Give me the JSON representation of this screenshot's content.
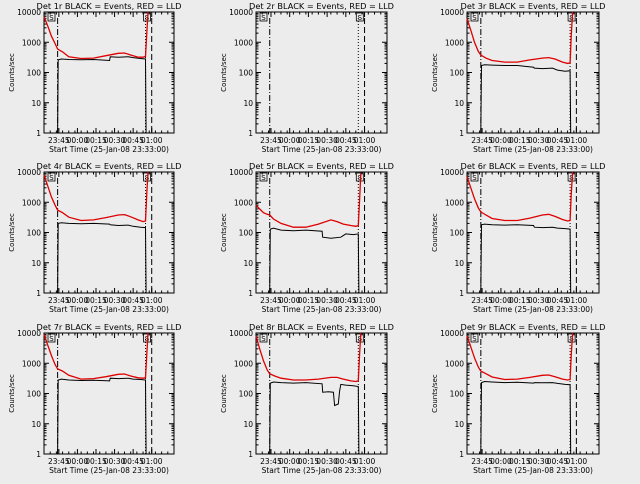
{
  "figure": {
    "xlabel": "Start Time (25-Jan-08 23:33:00)",
    "ylabel": "Counts/sec",
    "x_ticks": [
      "23:45",
      "00:00",
      "00:15",
      "00:30",
      "00:45",
      "01:00"
    ],
    "y_ticks": [
      "1",
      "10",
      "100",
      "1000",
      "10000"
    ],
    "legend_note": "BLACK = Events, RED = LLD",
    "marker_left": "S",
    "marker_right": "S"
  },
  "colors": {
    "events": "#000000",
    "lld": "#dd0000",
    "background": "#ececec"
  },
  "chart_data": [
    {
      "type": "line",
      "title": "Det 1r BLACK = Events, RED = LLD",
      "xlabel": "Start Time (25-Jan-08 23:33:00)",
      "ylabel": "Counts/sec",
      "yscale": "log",
      "xlim": [
        0,
        105
      ],
      "ylim": [
        1,
        10000
      ],
      "x_units": "minutes after 25-Jan-08 23:33:00",
      "series": [
        {
          "name": "Events",
          "color": "black",
          "x": [
            11,
            11.5,
            14,
            20,
            30,
            40,
            53,
            53.5,
            60,
            68,
            72,
            78,
            82,
            82.5
          ],
          "y": [
            0.5,
            260,
            280,
            270,
            265,
            270,
            250,
            330,
            320,
            330,
            310,
            290,
            280,
            0.5
          ]
        },
        {
          "name": "LLD",
          "color": "red",
          "x": [
            0,
            3,
            6,
            9,
            11,
            15,
            20,
            30,
            40,
            50,
            60,
            65,
            70,
            76,
            80,
            82,
            83,
            84
          ],
          "y": [
            7000,
            3500,
            1600,
            900,
            600,
            480,
            330,
            290,
            300,
            360,
            430,
            440,
            380,
            320,
            320,
            340,
            2000,
            12000
          ]
        }
      ],
      "vlines": [
        11,
        82,
        87
      ]
    },
    {
      "type": "line",
      "title": "Det 2r BLACK = Events, RED = LLD",
      "xlabel": "Start Time (25-Jan-08 23:33:00)",
      "ylabel": "Counts/sec",
      "yscale": "log",
      "xlim": [
        0,
        105
      ],
      "ylim": [
        1,
        10000
      ],
      "x_units": "minutes after 25-Jan-08 23:33:00",
      "series": [
        {
          "name": "Events",
          "color": "black",
          "x": [],
          "y": []
        },
        {
          "name": "LLD",
          "color": "red",
          "x": [],
          "y": []
        }
      ],
      "vlines": [
        11,
        82,
        87
      ]
    },
    {
      "type": "line",
      "title": "Det 3r BLACK = Events, RED = LLD",
      "xlabel": "Start Time (25-Jan-08 23:33:00)",
      "ylabel": "Counts/sec",
      "yscale": "log",
      "xlim": [
        0,
        105
      ],
      "ylim": [
        1,
        10000
      ],
      "x_units": "minutes after 25-Jan-08 23:33:00",
      "series": [
        {
          "name": "Events",
          "color": "black",
          "x": [
            11,
            11.5,
            14,
            20,
            30,
            40,
            53,
            53.5,
            60,
            68,
            72,
            78,
            82,
            82.5
          ],
          "y": [
            0.5,
            170,
            180,
            175,
            170,
            170,
            150,
            140,
            135,
            140,
            120,
            110,
            115,
            0.5
          ]
        },
        {
          "name": "LLD",
          "color": "red",
          "x": [
            0,
            3,
            6,
            9,
            11,
            15,
            20,
            30,
            40,
            50,
            60,
            65,
            70,
            76,
            80,
            82,
            83,
            84
          ],
          "y": [
            6000,
            2500,
            1000,
            500,
            380,
            300,
            250,
            220,
            220,
            260,
            300,
            310,
            280,
            220,
            200,
            210,
            1800,
            11000
          ]
        }
      ],
      "vlines": [
        11,
        82,
        87
      ]
    },
    {
      "type": "line",
      "title": "Det 4r BLACK = Events, RED = LLD",
      "xlabel": "Start Time (25-Jan-08 23:33:00)",
      "ylabel": "Counts/sec",
      "yscale": "log",
      "xlim": [
        0,
        105
      ],
      "ylim": [
        1,
        10000
      ],
      "x_units": "minutes after 25-Jan-08 23:33:00",
      "series": [
        {
          "name": "Events",
          "color": "black",
          "x": [
            11,
            11.5,
            14,
            20,
            30,
            40,
            53,
            53.5,
            60,
            68,
            72,
            78,
            82,
            82.5
          ],
          "y": [
            0.5,
            200,
            210,
            200,
            195,
            200,
            190,
            180,
            170,
            175,
            160,
            150,
            145,
            0.5
          ]
        },
        {
          "name": "LLD",
          "color": "red",
          "x": [
            0,
            3,
            6,
            9,
            11,
            15,
            20,
            30,
            40,
            50,
            60,
            65,
            70,
            76,
            80,
            82,
            83,
            84
          ],
          "y": [
            8000,
            3500,
            1500,
            800,
            550,
            450,
            320,
            250,
            260,
            310,
            380,
            390,
            330,
            260,
            230,
            240,
            2000,
            11000
          ]
        }
      ],
      "vlines": [
        11,
        82,
        87
      ]
    },
    {
      "type": "line",
      "title": "Det 5r BLACK = Events, RED = LLD",
      "xlabel": "Start Time (25-Jan-08 23:33:00)",
      "ylabel": "Counts/sec",
      "yscale": "log",
      "xlim": [
        0,
        105
      ],
      "ylim": [
        1,
        10000
      ],
      "x_units": "minutes after 25-Jan-08 23:33:00",
      "series": [
        {
          "name": "Events",
          "color": "black",
          "x": [
            11,
            11.5,
            14,
            20,
            30,
            40,
            53,
            53.5,
            60,
            68,
            72,
            78,
            82,
            82.5
          ],
          "y": [
            0.5,
            130,
            140,
            120,
            115,
            120,
            110,
            70,
            65,
            70,
            90,
            85,
            90,
            0.5
          ]
        },
        {
          "name": "LLD",
          "color": "red",
          "x": [
            0,
            3,
            6,
            9,
            11,
            14,
            20,
            30,
            40,
            50,
            60,
            65,
            70,
            76,
            80,
            82,
            83,
            84
          ],
          "y": [
            800,
            600,
            450,
            400,
            380,
            280,
            200,
            150,
            150,
            190,
            260,
            230,
            190,
            170,
            160,
            170,
            1200,
            9000
          ]
        }
      ],
      "vlines": [
        11,
        82,
        87
      ]
    },
    {
      "type": "line",
      "title": "Det 6r BLACK = Events, RED = LLD",
      "xlabel": "Start Time (25-Jan-08 23:33:00)",
      "ylabel": "Counts/sec",
      "yscale": "log",
      "xlim": [
        0,
        105
      ],
      "ylim": [
        1,
        10000
      ],
      "x_units": "minutes after 25-Jan-08 23:33:00",
      "series": [
        {
          "name": "Events",
          "color": "black",
          "x": [
            11,
            11.5,
            14,
            20,
            30,
            40,
            53,
            53.5,
            60,
            68,
            72,
            78,
            82,
            82.5
          ],
          "y": [
            0.5,
            180,
            190,
            180,
            175,
            180,
            170,
            150,
            145,
            150,
            140,
            135,
            130,
            0.5
          ]
        },
        {
          "name": "LLD",
          "color": "red",
          "x": [
            0,
            3,
            6,
            9,
            11,
            15,
            20,
            30,
            40,
            50,
            60,
            65,
            70,
            76,
            80,
            82,
            83,
            84
          ],
          "y": [
            7000,
            3000,
            1300,
            650,
            480,
            380,
            290,
            250,
            250,
            300,
            380,
            400,
            340,
            270,
            240,
            250,
            2000,
            11000
          ]
        }
      ],
      "vlines": [
        11,
        82,
        87
      ]
    },
    {
      "type": "line",
      "title": "Det 7r BLACK = Events, RED = LLD",
      "xlabel": "Start Time (25-Jan-08 23:33:00)",
      "ylabel": "Counts/sec",
      "yscale": "log",
      "xlim": [
        0,
        105
      ],
      "ylim": [
        1,
        10000
      ],
      "x_units": "minutes after 25-Jan-08 23:33:00",
      "series": [
        {
          "name": "Events",
          "color": "black",
          "x": [
            11,
            11.5,
            14,
            20,
            30,
            40,
            53,
            53.5,
            60,
            68,
            72,
            78,
            82,
            82.5
          ],
          "y": [
            0.5,
            280,
            300,
            280,
            270,
            275,
            260,
            320,
            310,
            320,
            300,
            290,
            280,
            0.5
          ]
        },
        {
          "name": "LLD",
          "color": "red",
          "x": [
            0,
            3,
            6,
            9,
            11,
            15,
            20,
            30,
            40,
            50,
            60,
            65,
            70,
            76,
            80,
            82,
            83,
            84
          ],
          "y": [
            9000,
            4000,
            1800,
            900,
            650,
            550,
            400,
            300,
            310,
            360,
            430,
            440,
            380,
            330,
            320,
            330,
            2000,
            12000
          ]
        }
      ],
      "vlines": [
        11,
        82,
        87
      ]
    },
    {
      "type": "line",
      "title": "Det 8r BLACK = Events, RED = LLD",
      "xlabel": "Start Time (25-Jan-08 23:33:00)",
      "ylabel": "Counts/sec",
      "yscale": "log",
      "xlim": [
        0,
        105
      ],
      "ylim": [
        1,
        10000
      ],
      "x_units": "minutes after 25-Jan-08 23:33:00",
      "series": [
        {
          "name": "Events",
          "color": "black",
          "x": [
            11,
            11.5,
            14,
            20,
            30,
            40,
            53,
            53.5,
            58,
            62,
            63,
            66,
            67,
            68,
            72,
            78,
            82,
            82.5
          ],
          "y": [
            0.5,
            220,
            240,
            230,
            220,
            230,
            210,
            110,
            115,
            110,
            40,
            45,
            120,
            200,
            190,
            180,
            170,
            0.5
          ]
        },
        {
          "name": "LLD",
          "color": "red",
          "x": [
            0,
            3,
            6,
            9,
            11,
            15,
            20,
            30,
            40,
            50,
            60,
            65,
            70,
            76,
            80,
            82,
            83,
            84
          ],
          "y": [
            8000,
            3000,
            1200,
            600,
            450,
            380,
            320,
            280,
            280,
            300,
            340,
            340,
            300,
            260,
            250,
            260,
            2000,
            12000
          ]
        }
      ],
      "vlines": [
        11,
        82,
        87
      ]
    },
    {
      "type": "line",
      "title": "Det 9r BLACK = Events, RED = LLD",
      "xlabel": "Start Time (25-Jan-08 23:33:00)",
      "ylabel": "Counts/sec",
      "yscale": "log",
      "xlim": [
        0,
        105
      ],
      "ylim": [
        1,
        10000
      ],
      "x_units": "minutes after 25-Jan-08 23:33:00",
      "series": [
        {
          "name": "Events",
          "color": "black",
          "x": [
            11,
            11.5,
            14,
            20,
            30,
            40,
            53,
            53.5,
            60,
            68,
            72,
            78,
            82,
            82.5
          ],
          "y": [
            0.5,
            230,
            250,
            240,
            230,
            235,
            220,
            230,
            225,
            230,
            215,
            200,
            195,
            0.5
          ]
        },
        {
          "name": "LLD",
          "color": "red",
          "x": [
            0,
            3,
            6,
            9,
            11,
            15,
            20,
            30,
            40,
            50,
            60,
            65,
            70,
            76,
            80,
            82,
            83,
            84
          ],
          "y": [
            8000,
            3500,
            1500,
            750,
            550,
            450,
            350,
            290,
            300,
            340,
            400,
            410,
            360,
            300,
            280,
            290,
            2000,
            12000
          ]
        }
      ],
      "vlines": [
        11,
        82,
        87
      ]
    }
  ]
}
